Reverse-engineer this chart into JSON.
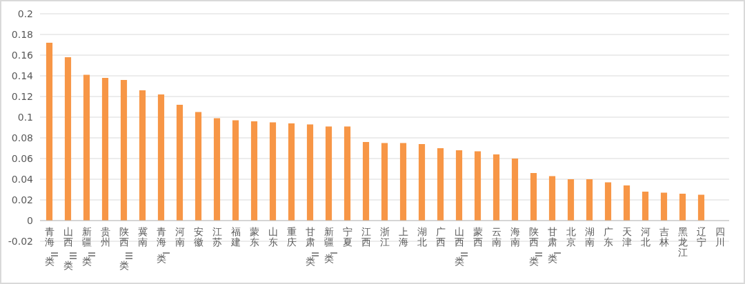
{
  "chart_data": {
    "type": "bar",
    "categories": [
      "青海 II 类",
      "山西III类",
      "新疆 II 类",
      "贵州",
      "陕西III类",
      "冀南",
      "青海 I 类",
      "河南",
      "安徽",
      "江苏",
      "福建",
      "蒙东",
      "山东",
      "重庆",
      "甘肃 II 类",
      "新疆 I 类",
      "宁夏",
      "江西",
      "浙江",
      "上海",
      "湖北",
      "广西",
      "山西 II 类",
      "蒙西",
      "云南",
      "海南",
      "陕西 II 类",
      "甘肃 I 类",
      "北京",
      "湖南",
      "广东",
      "天津",
      "河北",
      "吉林",
      "黑龙江",
      "辽宁",
      "四川"
    ],
    "values": [
      0.172,
      0.158,
      0.141,
      0.138,
      0.136,
      0.126,
      0.122,
      0.112,
      0.105,
      0.099,
      0.097,
      0.096,
      0.095,
      0.094,
      0.093,
      0.091,
      0.091,
      0.076,
      0.075,
      0.075,
      0.074,
      0.07,
      0.068,
      0.067,
      0.064,
      0.06,
      0.046,
      0.043,
      0.04,
      0.04,
      0.037,
      0.034,
      0.028,
      0.027,
      0.026,
      0.025,
      0
    ],
    "color": "#f79646",
    "ylim": [
      -0.02,
      0.2
    ],
    "yticks": [
      -0.02,
      0,
      0.02,
      0.04,
      0.06,
      0.08,
      0.1,
      0.12,
      0.14,
      0.16,
      0.18,
      0.2
    ],
    "grid": true
  }
}
